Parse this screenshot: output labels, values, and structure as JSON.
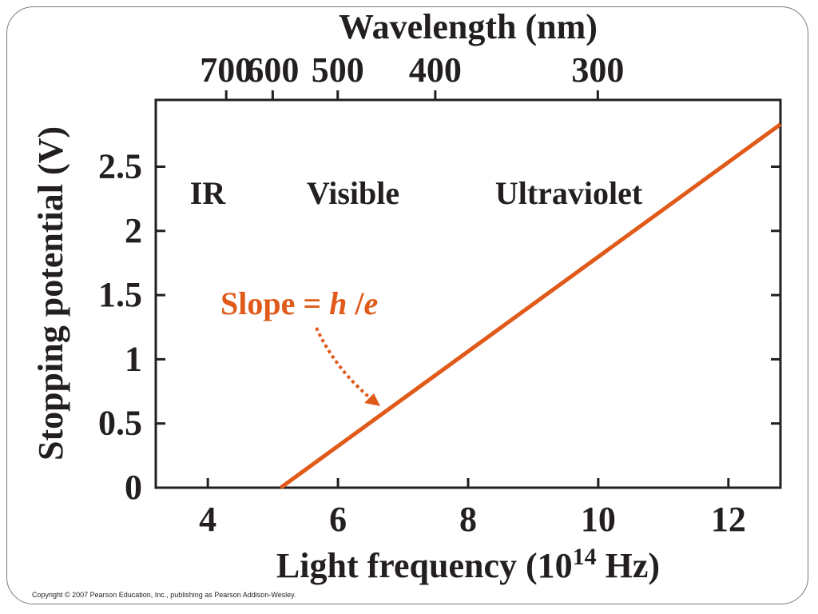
{
  "chart_data": {
    "type": "line",
    "top_axis_label": "Wavelength (nm)",
    "top_ticks": [
      700,
      600,
      500,
      400,
      300
    ],
    "xlabel_main": "Light frequency (10",
    "xlabel_exp": "14",
    "xlabel_tail": " Hz)",
    "ylabel": "Stopping potential (V)",
    "x_ticks": [
      4,
      6,
      8,
      10,
      12
    ],
    "y_ticks": [
      "0",
      "0.5",
      "1",
      "1.5",
      "2",
      "2.5"
    ],
    "y_tick_values": [
      0,
      0.5,
      1,
      1.5,
      2,
      2.5
    ],
    "xlim": [
      3.2,
      12.8
    ],
    "ylim": [
      0,
      3.02
    ],
    "series": [
      {
        "x": [
          5.12,
          12.8
        ],
        "y": [
          0,
          2.83
        ]
      }
    ],
    "region_labels": [
      "IR",
      "Visible",
      "Ultraviolet"
    ],
    "annotation": {
      "prefix": "Slope = ",
      "h": "h",
      "sep": " /",
      "e": "e"
    },
    "line_color": "#e05a1a"
  },
  "copyright": "Copyright © 2007 Pearson Education, Inc., publishing as Pearson Addison-Wesley."
}
